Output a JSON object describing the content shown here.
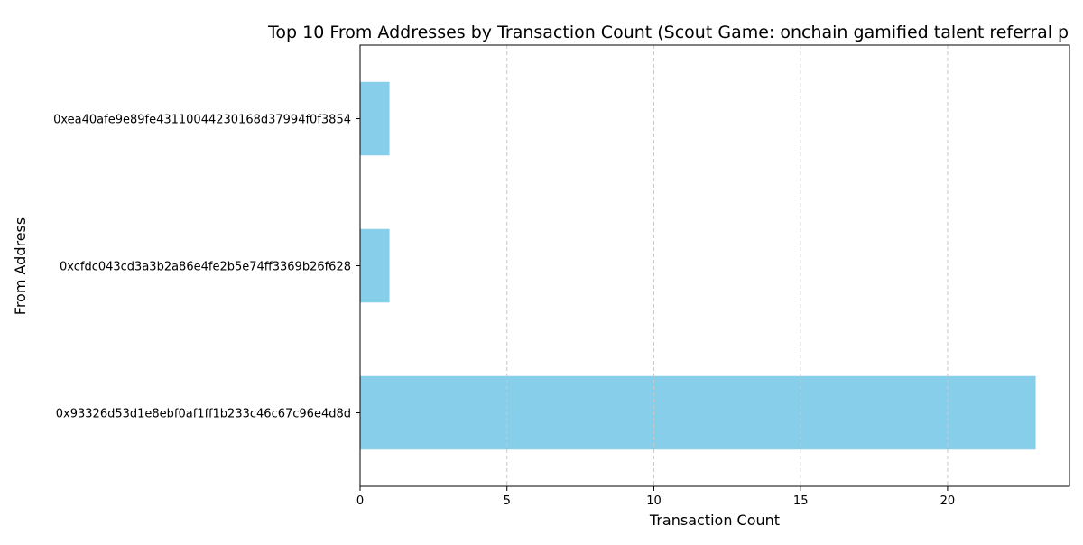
{
  "chart_data": {
    "type": "bar",
    "orientation": "horizontal",
    "title": "Top 10 From Addresses by Transaction Count (Scout Game: onchain gamified talent referral p",
    "xlabel": "Transaction Count",
    "ylabel": "From Address",
    "categories": [
      "0x93326d53d1e8ebf0af1ff1b233c46c67c96e4d8d",
      "0xcfdc043cd3a3b2a86e4fe2b5e74ff3369b26f628",
      "0xea40afe9e89fe43110044230168d37994f0f3854"
    ],
    "values": [
      23,
      1,
      1
    ],
    "xlim": [
      0,
      24.15
    ],
    "xticks": [
      0,
      5,
      10,
      15,
      20
    ],
    "grid": "x-dashed",
    "legend": "none",
    "bar_color": "#87CEEB",
    "axis_color": "#000000",
    "grid_color": "#c8c8c8"
  }
}
